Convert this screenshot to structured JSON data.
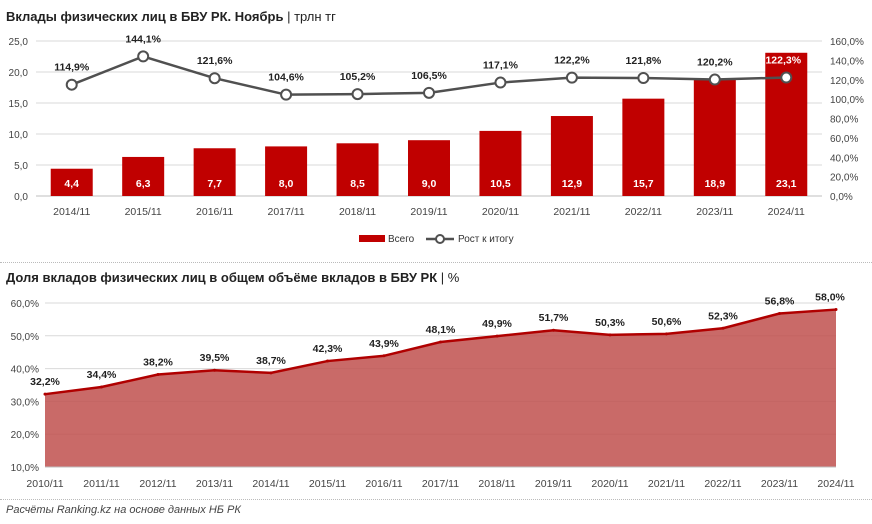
{
  "chart_data": [
    {
      "type": "bar+line",
      "title": "Вклады физических лиц в БВУ РК. Ноябрь",
      "unit": "трлн тг",
      "categories": [
        "2014/11",
        "2015/11",
        "2016/11",
        "2017/11",
        "2018/11",
        "2019/11",
        "2020/11",
        "2021/11",
        "2022/11",
        "2023/11",
        "2024/11"
      ],
      "series": [
        {
          "name": "Всего",
          "kind": "bar",
          "axis": "left",
          "color": "#c00000",
          "values": [
            4.4,
            6.3,
            7.7,
            8.0,
            8.5,
            9.0,
            10.5,
            12.9,
            15.7,
            18.9,
            23.1
          ],
          "labels": [
            "4,4",
            "6,3",
            "7,7",
            "8,0",
            "8,5",
            "9,0",
            "10,5",
            "12,9",
            "15,7",
            "18,9",
            "23,1"
          ]
        },
        {
          "name": "Рост к итогу",
          "kind": "line",
          "axis": "right",
          "color": "#505050",
          "values": [
            114.9,
            144.1,
            121.6,
            104.6,
            105.2,
            106.5,
            117.1,
            122.2,
            121.8,
            120.2,
            122.3
          ],
          "labels": [
            "114,9%",
            "144,1%",
            "121,6%",
            "104,6%",
            "105,2%",
            "106,5%",
            "117,1%",
            "122,2%",
            "121,8%",
            "120,2%",
            "122,3%"
          ]
        }
      ],
      "ylim_left": [
        0,
        25
      ],
      "yticks_left": [
        "0,0",
        "5,0",
        "10,0",
        "15,0",
        "20,0",
        "25,0"
      ],
      "ylim_right": [
        0,
        160
      ],
      "yticks_right": [
        "0,0%",
        "20,0%",
        "40,0%",
        "60,0%",
        "80,0%",
        "100,0%",
        "120,0%",
        "140,0%",
        "160,0%"
      ],
      "grid": true,
      "legend": "bottom"
    },
    {
      "type": "area",
      "title": "Доля вкладов физических лиц в общем объёме вкладов в БВУ РК",
      "unit": "%",
      "categories": [
        "2010/11",
        "2011/11",
        "2012/11",
        "2013/11",
        "2014/11",
        "2015/11",
        "2016/11",
        "2017/11",
        "2018/11",
        "2019/11",
        "2020/11",
        "2021/11",
        "2022/11",
        "2023/11",
        "2024/11"
      ],
      "series": [
        {
          "kind": "area",
          "color": "#c00000",
          "values": [
            32.2,
            34.4,
            38.2,
            39.5,
            38.7,
            42.3,
            43.9,
            48.1,
            49.9,
            51.7,
            50.3,
            50.6,
            52.3,
            56.8,
            58.0
          ],
          "labels": [
            "32,2%",
            "34,4%",
            "38,2%",
            "39,5%",
            "38,7%",
            "42,3%",
            "43,9%",
            "48,1%",
            "49,9%",
            "51,7%",
            "50,3%",
            "50,6%",
            "52,3%",
            "56,8%",
            "58,0%"
          ]
        }
      ],
      "ylim": [
        10,
        60
      ],
      "yticks": [
        "10,0%",
        "20,0%",
        "30,0%",
        "40,0%",
        "50,0%",
        "60,0%"
      ],
      "grid": true
    }
  ],
  "footer": "Расчёты Ranking.kz на основе данных НБ РК"
}
